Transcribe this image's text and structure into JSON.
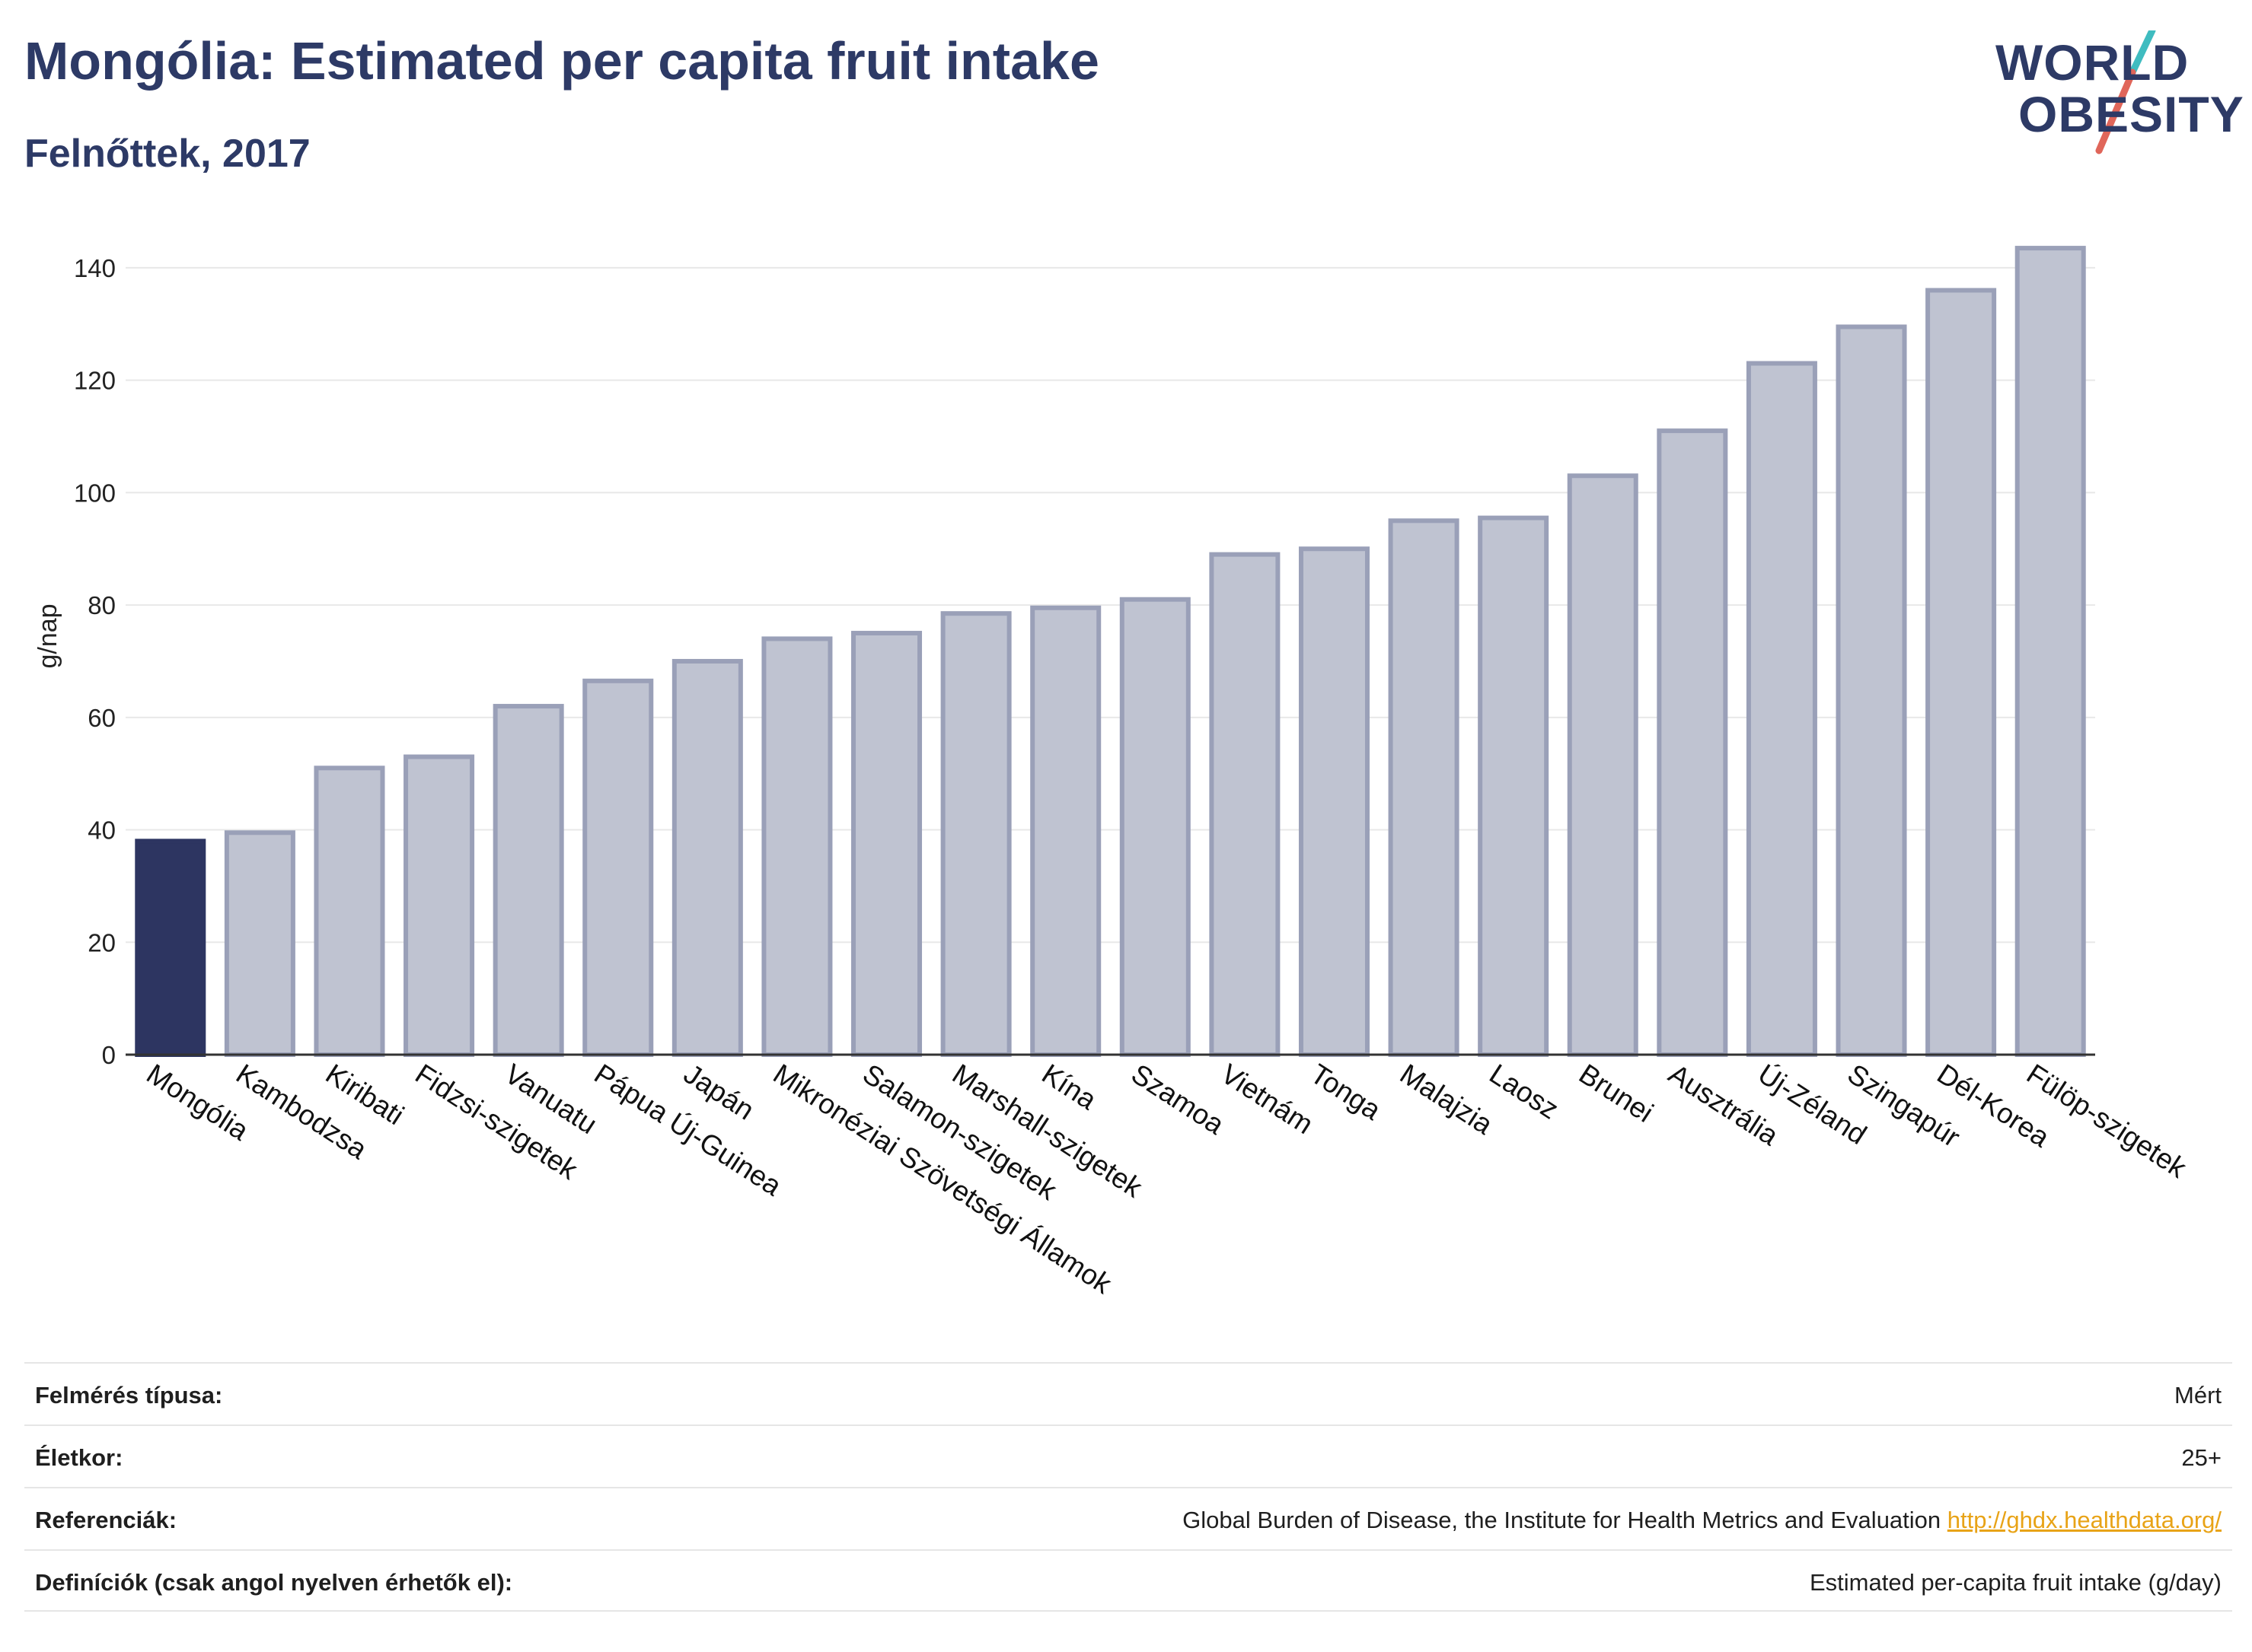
{
  "header": {
    "title": "Mongólia: Estimated per capita fruit intake",
    "subtitle": "Felnőttek, 2017"
  },
  "logo": {
    "line1": "WORLD",
    "line2": "OBESITY"
  },
  "colors": {
    "highlight_bar": "#2d3561",
    "bar_fill": "#bfc3d1",
    "bar_stroke": "#9aa0b8",
    "grid": "#e8e8e8",
    "text": "#2d3a66",
    "logo_slash_top": "#3fbcc0",
    "logo_slash_bottom": "#e0665a",
    "link": "#e8a317"
  },
  "chart_data": {
    "type": "bar",
    "title": "Mongólia: Estimated per capita fruit intake",
    "subtitle": "Felnőttek, 2017",
    "xlabel": "",
    "ylabel": "g/nap",
    "ylim": [
      0,
      145
    ],
    "yticks": [
      0,
      20,
      40,
      60,
      80,
      100,
      120,
      140
    ],
    "grid": true,
    "highlight": "Mongólia",
    "categories": [
      "Mongólia",
      "Kambodzsa",
      "Kiribati",
      "Fidzsi-szigetek",
      "Vanuatu",
      "Pápua Új-Guinea",
      "Japán",
      "Mikronéziai Szövetségi Államok",
      "Salamon-szigetek",
      "Marshall-szigetek",
      "Kína",
      "Szamoa",
      "Vietnám",
      "Tonga",
      "Malajzia",
      "Laosz",
      "Brunei",
      "Ausztrália",
      "Új-Zéland",
      "Szingapúr",
      "Dél-Korea",
      "Fülöp-szigetek"
    ],
    "values": [
      38,
      39.5,
      51,
      53,
      62,
      66.5,
      70,
      74,
      75,
      78.5,
      79.5,
      81,
      89,
      90,
      95,
      95.5,
      103,
      111,
      123,
      129.5,
      136,
      143.5
    ]
  },
  "info_table": [
    {
      "label": "Felmérés típusa:",
      "value": "Mért",
      "link": ""
    },
    {
      "label": "Életkor:",
      "value": "25+",
      "link": ""
    },
    {
      "label": "Referenciák:",
      "value": "Global Burden of Disease, the Institute for Health Metrics and Evaluation",
      "link": "http://ghdx.healthdata.org/"
    },
    {
      "label": "Definíciók (csak angol nyelven érhetők el):",
      "value": "Estimated per-capita fruit intake (g/day)",
      "link": ""
    }
  ]
}
